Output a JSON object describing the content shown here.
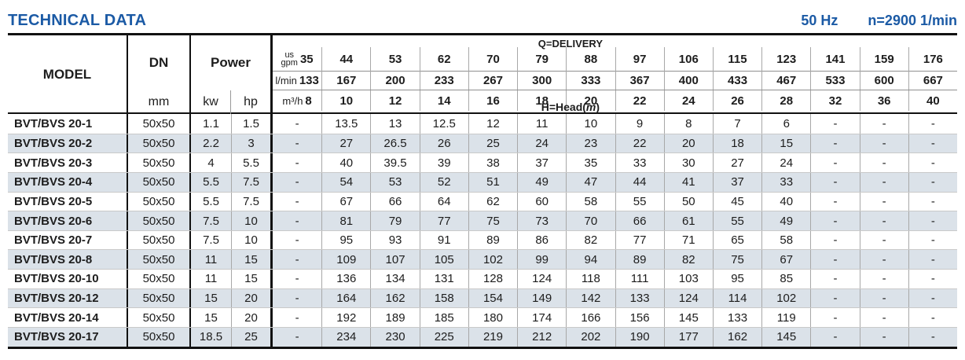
{
  "page": {
    "title": "TECHNICAL DATA",
    "frequency": "50 Hz",
    "rotation_speed": "n=2900 1/min"
  },
  "table": {
    "headers": {
      "model": "MODEL",
      "dn": "DN",
      "dn_unit": "mm",
      "power": "Power",
      "power_unit_kw": "kw",
      "power_unit_hp": "hp",
      "delivery": "Q=DELIVERY",
      "head_prefix": "H=Head(",
      "head_italic": "m",
      "head_suffix": ")"
    },
    "delivery_units": [
      {
        "label_top": "us",
        "label": "gpm",
        "values": [
          "35",
          "44",
          "53",
          "62",
          "70",
          "79",
          "88",
          "97",
          "106",
          "115",
          "123",
          "141",
          "159",
          "176"
        ]
      },
      {
        "label": "l/min",
        "values": [
          "133",
          "167",
          "200",
          "233",
          "267",
          "300",
          "333",
          "367",
          "400",
          "433",
          "467",
          "533",
          "600",
          "667"
        ]
      },
      {
        "label": "m³/h",
        "values": [
          "8",
          "10",
          "12",
          "14",
          "16",
          "18",
          "20",
          "22",
          "24",
          "26",
          "28",
          "32",
          "36",
          "40"
        ]
      }
    ],
    "rows": [
      {
        "model": "BVT/BVS 20-1",
        "dn": "50x50",
        "kw": "1.1",
        "hp": "1.5",
        "head": [
          "-",
          "13.5",
          "13",
          "12.5",
          "12",
          "11",
          "10",
          "9",
          "8",
          "7",
          "6",
          "-",
          "-",
          "-"
        ]
      },
      {
        "model": "BVT/BVS 20-2",
        "dn": "50x50",
        "kw": "2.2",
        "hp": "3",
        "head": [
          "-",
          "27",
          "26.5",
          "26",
          "25",
          "24",
          "23",
          "22",
          "20",
          "18",
          "15",
          "-",
          "-",
          "-"
        ]
      },
      {
        "model": "BVT/BVS 20-3",
        "dn": "50x50",
        "kw": "4",
        "hp": "5.5",
        "head": [
          "-",
          "40",
          "39.5",
          "39",
          "38",
          "37",
          "35",
          "33",
          "30",
          "27",
          "24",
          "-",
          "-",
          "-"
        ]
      },
      {
        "model": "BVT/BVS 20-4",
        "dn": "50x50",
        "kw": "5.5",
        "hp": "7.5",
        "head": [
          "-",
          "54",
          "53",
          "52",
          "51",
          "49",
          "47",
          "44",
          "41",
          "37",
          "33",
          "-",
          "-",
          "-"
        ]
      },
      {
        "model": "BVT/BVS 20-5",
        "dn": "50x50",
        "kw": "5.5",
        "hp": "7.5",
        "head": [
          "-",
          "67",
          "66",
          "64",
          "62",
          "60",
          "58",
          "55",
          "50",
          "45",
          "40",
          "-",
          "-",
          "-"
        ]
      },
      {
        "model": "BVT/BVS 20-6",
        "dn": "50x50",
        "kw": "7.5",
        "hp": "10",
        "head": [
          "-",
          "81",
          "79",
          "77",
          "75",
          "73",
          "70",
          "66",
          "61",
          "55",
          "49",
          "-",
          "-",
          "-"
        ]
      },
      {
        "model": "BVT/BVS 20-7",
        "dn": "50x50",
        "kw": "7.5",
        "hp": "10",
        "head": [
          "-",
          "95",
          "93",
          "91",
          "89",
          "86",
          "82",
          "77",
          "71",
          "65",
          "58",
          "-",
          "-",
          "-"
        ]
      },
      {
        "model": "BVT/BVS 20-8",
        "dn": "50x50",
        "kw": "11",
        "hp": "15",
        "head": [
          "-",
          "109",
          "107",
          "105",
          "102",
          "99",
          "94",
          "89",
          "82",
          "75",
          "67",
          "-",
          "-",
          "-"
        ]
      },
      {
        "model": "BVT/BVS 20-10",
        "dn": "50x50",
        "kw": "11",
        "hp": "15",
        "head": [
          "-",
          "136",
          "134",
          "131",
          "128",
          "124",
          "118",
          "111",
          "103",
          "95",
          "85",
          "-",
          "-",
          "-"
        ]
      },
      {
        "model": "BVT/BVS 20-12",
        "dn": "50x50",
        "kw": "15",
        "hp": "20",
        "head": [
          "-",
          "164",
          "162",
          "158",
          "154",
          "149",
          "142",
          "133",
          "124",
          "114",
          "102",
          "-",
          "-",
          "-"
        ]
      },
      {
        "model": "BVT/BVS 20-14",
        "dn": "50x50",
        "kw": "15",
        "hp": "20",
        "head": [
          "-",
          "192",
          "189",
          "185",
          "180",
          "174",
          "166",
          "156",
          "145",
          "133",
          "119",
          "-",
          "-",
          "-"
        ]
      },
      {
        "model": "BVT/BVS 20-17",
        "dn": "50x50",
        "kw": "18.5",
        "hp": "25",
        "head": [
          "-",
          "234",
          "230",
          "225",
          "219",
          "212",
          "202",
          "190",
          "177",
          "162",
          "145",
          "-",
          "-",
          "-"
        ]
      }
    ]
  }
}
